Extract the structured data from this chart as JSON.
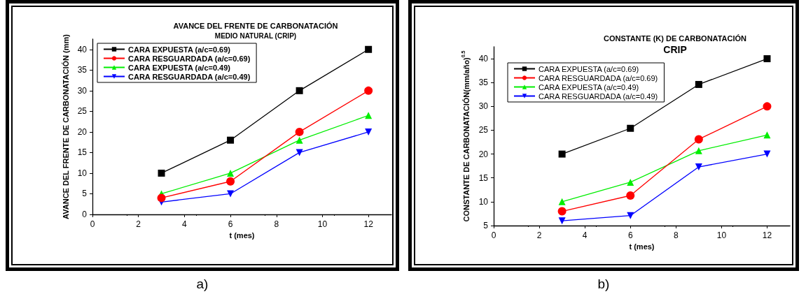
{
  "chart_data": [
    {
      "type": "line",
      "title": "AVANCE DEL FRENTE DE CARBONATACIÓN",
      "subtitle": "MEDIO NATURAL (CRIP)",
      "xlabel": "t (mes)",
      "ylabel": "AVANCE DEL FRENTE DE CARBONATACIÓN (mm)",
      "x": [
        3,
        6,
        9,
        12
      ],
      "xlim": [
        0,
        13
      ],
      "xticks": [
        0,
        2,
        4,
        6,
        8,
        10,
        12
      ],
      "ylim": [
        0,
        42.5
      ],
      "yticks": [
        0,
        5,
        10,
        15,
        20,
        25,
        30,
        35,
        40
      ],
      "grid": false,
      "legend": "top left",
      "line_style": "solid",
      "annotations": [
        "a)"
      ],
      "series": [
        {
          "name": "CARA EXPUESTA (a/c=0.69)",
          "color": "#000000",
          "marker": "square",
          "values": [
            10,
            18,
            30,
            40
          ]
        },
        {
          "name": "CARA RESGUARDADA (a/c=0.69)",
          "color": "#ff0000",
          "marker": "circle",
          "values": [
            4,
            8,
            20,
            30
          ]
        },
        {
          "name": "CARA EXPUESTA (a/c=0.49)",
          "color": "#00ee00",
          "marker": "triangle",
          "values": [
            5,
            10,
            18,
            24
          ]
        },
        {
          "name": "CARA RESGUARDADA (a/c=0.49)",
          "color": "#0000ff",
          "marker": "triangle-down",
          "values": [
            3,
            5,
            15,
            20
          ]
        }
      ]
    },
    {
      "type": "line",
      "title": "CONSTANTE (K) DE CARBONATACIÓN",
      "subtitle": "CRIP",
      "xlabel": "t (mes)",
      "ylabel": "CONSTANTE DE CARBONATACIÓN(mm/año)$^{0.5}$",
      "x": [
        3,
        6,
        9,
        12
      ],
      "xlim": [
        0,
        13
      ],
      "xticks": [
        0,
        2,
        4,
        6,
        8,
        10,
        12
      ],
      "ylim": [
        5,
        42.5
      ],
      "yticks": [
        5,
        10,
        15,
        20,
        25,
        30,
        35,
        40
      ],
      "grid": false,
      "legend": "top left",
      "line_style": "solid",
      "annotations": [
        "b)"
      ],
      "series": [
        {
          "name": "CARA EXPUESTA (a/c=0.69)",
          "color": "#000000",
          "marker": "square",
          "values": [
            20,
            25.4,
            34.6,
            40
          ]
        },
        {
          "name": "CARA RESGUARDADA (a/c=0.69)",
          "color": "#ff0000",
          "marker": "circle",
          "values": [
            8,
            11.3,
            23.1,
            30
          ]
        },
        {
          "name": "CARA EXPUESTA (a/c=0.49)",
          "color": "#00ee00",
          "marker": "triangle",
          "values": [
            10,
            14.1,
            20.7,
            24
          ]
        },
        {
          "name": "CARA RESGUARDADA (a/c=0.49)",
          "color": "#0000ff",
          "marker": "triangle-down",
          "values": [
            6,
            7.1,
            17.3,
            20
          ]
        }
      ]
    }
  ]
}
